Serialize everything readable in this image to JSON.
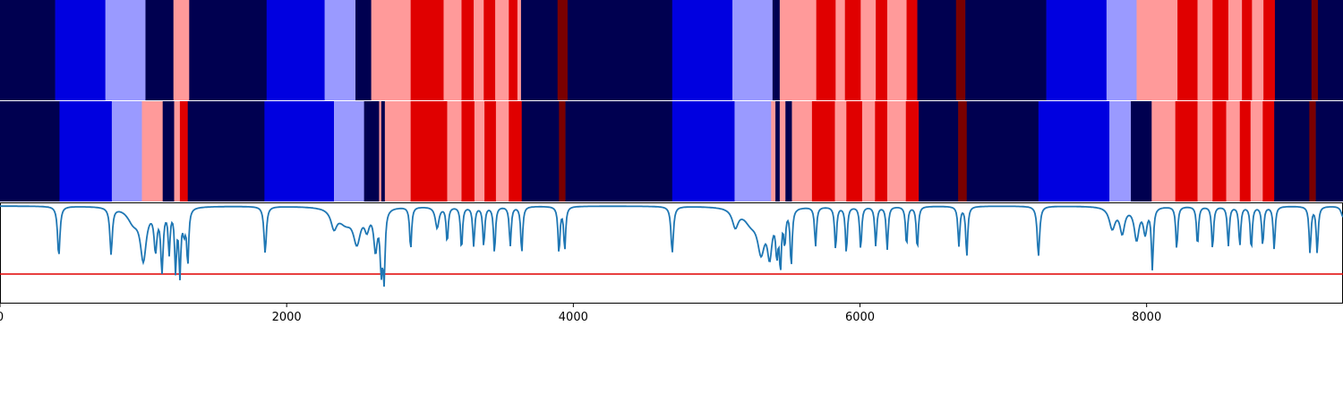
{
  "chart_data": {
    "type": "heatmap",
    "title": "",
    "xlabel": "",
    "ylabel": "",
    "xlim": [
      0,
      9370
    ],
    "x_ticks": [
      {
        "value": 0,
        "label": "0"
      },
      {
        "value": 2000,
        "label": "2000"
      },
      {
        "value": 4000,
        "label": "4000"
      },
      {
        "value": 6000,
        "label": "6000"
      },
      {
        "value": 8000,
        "label": "8000"
      }
    ],
    "colors": {
      "0": "#000050",
      "1": "#0000e0",
      "2": "#9a9aff",
      "3": "#ff9a9a",
      "4": "#e00000",
      "5": "#7a0000"
    },
    "segment_rows": [
      {
        "name": "",
        "segments": [
          [
            0,
            385,
            0
          ],
          [
            385,
            735,
            1
          ],
          [
            735,
            1015,
            2
          ],
          [
            1015,
            1210,
            0
          ],
          [
            1210,
            1320,
            3
          ],
          [
            1320,
            1860,
            0
          ],
          [
            1860,
            2265,
            1
          ],
          [
            2265,
            2480,
            2
          ],
          [
            2480,
            2590,
            0
          ],
          [
            2590,
            2865,
            3
          ],
          [
            2865,
            3095,
            4
          ],
          [
            3095,
            3220,
            3
          ],
          [
            3220,
            3305,
            4
          ],
          [
            3305,
            3375,
            3
          ],
          [
            3375,
            3455,
            4
          ],
          [
            3455,
            3550,
            3
          ],
          [
            3550,
            3610,
            4
          ],
          [
            3610,
            3635,
            3
          ],
          [
            3635,
            3890,
            0
          ],
          [
            3890,
            3960,
            5
          ],
          [
            3960,
            4690,
            0
          ],
          [
            4690,
            5110,
            1
          ],
          [
            5110,
            5390,
            2
          ],
          [
            5390,
            5440,
            0
          ],
          [
            5440,
            5695,
            3
          ],
          [
            5695,
            5830,
            4
          ],
          [
            5830,
            5895,
            3
          ],
          [
            5895,
            6005,
            4
          ],
          [
            6005,
            6110,
            3
          ],
          [
            6110,
            6190,
            4
          ],
          [
            6190,
            6325,
            3
          ],
          [
            6325,
            6400,
            4
          ],
          [
            6400,
            6670,
            0
          ],
          [
            6670,
            6735,
            5
          ],
          [
            6735,
            7300,
            0
          ],
          [
            7300,
            7720,
            1
          ],
          [
            7720,
            7930,
            2
          ],
          [
            7930,
            8215,
            3
          ],
          [
            8215,
            8355,
            4
          ],
          [
            8355,
            8460,
            3
          ],
          [
            8460,
            8570,
            4
          ],
          [
            8570,
            8665,
            3
          ],
          [
            8665,
            8735,
            4
          ],
          [
            8735,
            8815,
            3
          ],
          [
            8815,
            8895,
            4
          ],
          [
            8895,
            9150,
            0
          ],
          [
            9150,
            9195,
            5
          ],
          [
            9195,
            9370,
            0
          ]
        ]
      },
      {
        "name": "",
        "segments": [
          [
            0,
            415,
            0
          ],
          [
            415,
            780,
            1
          ],
          [
            780,
            990,
            2
          ],
          [
            990,
            1135,
            3
          ],
          [
            1135,
            1215,
            0
          ],
          [
            1215,
            1255,
            3
          ],
          [
            1255,
            1310,
            4
          ],
          [
            1310,
            1845,
            0
          ],
          [
            1845,
            2330,
            1
          ],
          [
            2330,
            2540,
            2
          ],
          [
            2540,
            2645,
            0
          ],
          [
            2645,
            2660,
            3
          ],
          [
            2660,
            2685,
            0
          ],
          [
            2685,
            2865,
            3
          ],
          [
            2865,
            3120,
            4
          ],
          [
            3120,
            3220,
            3
          ],
          [
            3220,
            3310,
            4
          ],
          [
            3310,
            3380,
            3
          ],
          [
            3380,
            3460,
            4
          ],
          [
            3460,
            3550,
            3
          ],
          [
            3550,
            3640,
            4
          ],
          [
            3640,
            3900,
            0
          ],
          [
            3900,
            3945,
            5
          ],
          [
            3945,
            4690,
            0
          ],
          [
            4690,
            5125,
            1
          ],
          [
            5125,
            5380,
            2
          ],
          [
            5380,
            5410,
            3
          ],
          [
            5410,
            5440,
            0
          ],
          [
            5440,
            5480,
            3
          ],
          [
            5480,
            5525,
            0
          ],
          [
            5525,
            5665,
            3
          ],
          [
            5665,
            5825,
            4
          ],
          [
            5825,
            5905,
            3
          ],
          [
            5905,
            6015,
            4
          ],
          [
            6015,
            6105,
            3
          ],
          [
            6105,
            6190,
            4
          ],
          [
            6190,
            6320,
            3
          ],
          [
            6320,
            6410,
            4
          ],
          [
            6410,
            6685,
            0
          ],
          [
            6685,
            6745,
            5
          ],
          [
            6745,
            7245,
            0
          ],
          [
            7245,
            7740,
            1
          ],
          [
            7740,
            7890,
            2
          ],
          [
            7890,
            8035,
            0
          ],
          [
            8035,
            8200,
            3
          ],
          [
            8200,
            8355,
            4
          ],
          [
            8355,
            8460,
            3
          ],
          [
            8460,
            8555,
            4
          ],
          [
            8555,
            8650,
            3
          ],
          [
            8650,
            8725,
            4
          ],
          [
            8725,
            8810,
            3
          ],
          [
            8810,
            8890,
            4
          ],
          [
            8890,
            9135,
            0
          ],
          [
            9135,
            9180,
            5
          ],
          [
            9180,
            9370,
            0
          ]
        ]
      }
    ],
    "line_panel": {
      "ylim": [
        -1.35,
        0.05
      ],
      "baseline": 0,
      "threshold": -0.95,
      "series_color": "#1f77b4",
      "threshold_color": "#e00000",
      "dips": [
        [
          410,
          -0.7,
          10
        ],
        [
          775,
          -0.65,
          10
        ],
        [
          930,
          -0.2,
          50
        ],
        [
          1000,
          -0.7,
          25
        ],
        [
          1085,
          -0.55,
          12
        ],
        [
          1130,
          -0.85,
          10
        ],
        [
          1180,
          -0.6,
          8
        ],
        [
          1225,
          -0.85,
          8
        ],
        [
          1255,
          -0.9,
          8
        ],
        [
          1285,
          -0.3,
          12
        ],
        [
          1310,
          -0.75,
          8
        ],
        [
          1850,
          -0.65,
          10
        ],
        [
          2330,
          -0.25,
          25
        ],
        [
          2410,
          -0.2,
          60
        ],
        [
          2490,
          -0.45,
          30
        ],
        [
          2560,
          -0.25,
          20
        ],
        [
          2620,
          -0.55,
          15
        ],
        [
          2660,
          -0.8,
          10
        ],
        [
          2680,
          -0.9,
          8
        ],
        [
          2865,
          -0.6,
          8
        ],
        [
          3050,
          -0.3,
          15
        ],
        [
          3120,
          -0.5,
          8
        ],
        [
          3220,
          -0.6,
          8
        ],
        [
          3305,
          -0.55,
          8
        ],
        [
          3375,
          -0.55,
          8
        ],
        [
          3450,
          -0.65,
          8
        ],
        [
          3560,
          -0.55,
          8
        ],
        [
          3640,
          -0.65,
          8
        ],
        [
          3900,
          -0.65,
          8
        ],
        [
          3940,
          -0.6,
          8
        ],
        [
          4690,
          -0.65,
          10
        ],
        [
          5130,
          -0.25,
          25
        ],
        [
          5240,
          -0.2,
          60
        ],
        [
          5310,
          -0.55,
          30
        ],
        [
          5370,
          -0.6,
          20
        ],
        [
          5420,
          -0.55,
          10
        ],
        [
          5445,
          -0.75,
          8
        ],
        [
          5475,
          -0.45,
          8
        ],
        [
          5520,
          -0.8,
          8
        ],
        [
          5690,
          -0.55,
          8
        ],
        [
          5830,
          -0.6,
          8
        ],
        [
          5905,
          -0.65,
          8
        ],
        [
          6005,
          -0.6,
          8
        ],
        [
          6110,
          -0.55,
          8
        ],
        [
          6190,
          -0.6,
          8
        ],
        [
          6325,
          -0.55,
          8
        ],
        [
          6400,
          -0.6,
          8
        ],
        [
          6690,
          -0.55,
          8
        ],
        [
          6745,
          -0.7,
          8
        ],
        [
          7245,
          -0.7,
          10
        ],
        [
          7760,
          -0.3,
          25
        ],
        [
          7830,
          -0.35,
          20
        ],
        [
          7930,
          -0.45,
          20
        ],
        [
          7990,
          -0.35,
          15
        ],
        [
          8040,
          -0.85,
          8
        ],
        [
          8210,
          -0.6,
          8
        ],
        [
          8355,
          -0.55,
          8
        ],
        [
          8460,
          -0.6,
          8
        ],
        [
          8570,
          -0.55,
          8
        ],
        [
          8650,
          -0.55,
          8
        ],
        [
          8730,
          -0.6,
          8
        ],
        [
          8810,
          -0.55,
          8
        ],
        [
          8890,
          -0.6,
          8
        ],
        [
          9140,
          -0.65,
          8
        ],
        [
          9190,
          -0.65,
          8
        ],
        [
          9370,
          -0.15,
          15
        ]
      ]
    }
  }
}
